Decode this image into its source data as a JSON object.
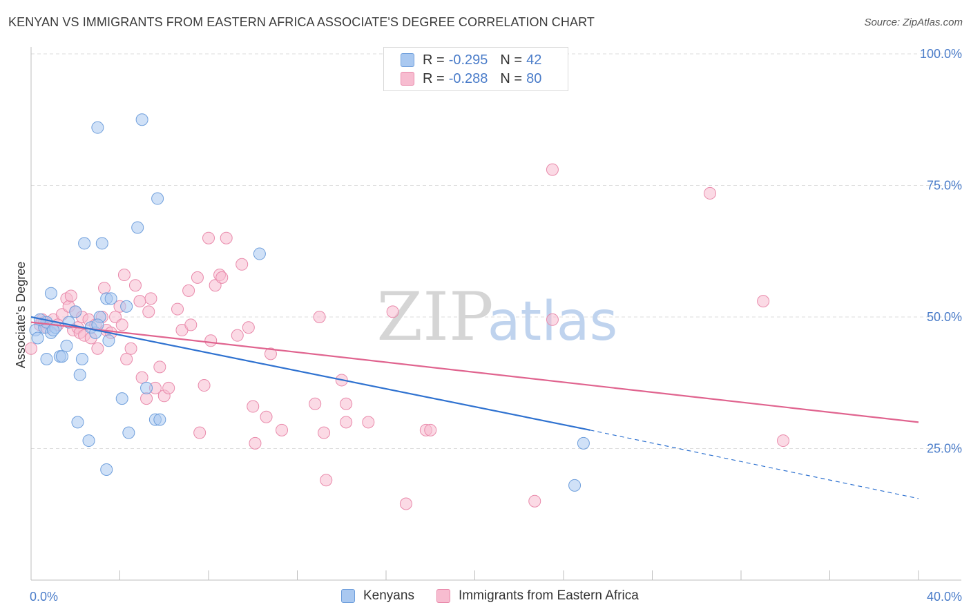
{
  "title": "KENYAN VS IMMIGRANTS FROM EASTERN AFRICA ASSOCIATE'S DEGREE CORRELATION CHART",
  "source": "Source: ZipAtlas.com",
  "watermark": {
    "zip": "ZIP",
    "atlas": "atlas"
  },
  "legend": {
    "kenyans": {
      "r_label": "R =",
      "r_value": "-0.295",
      "n_label": "N =",
      "n_value": "42"
    },
    "eastern_africa": {
      "r_label": "R =",
      "r_value": "-0.288",
      "n_label": "N =",
      "n_value": "80"
    }
  },
  "bottom_legend": {
    "kenyans": "Kenyans",
    "eastern_africa": "Immigrants from Eastern Africa"
  },
  "colors": {
    "kenyans_fill": "#a9c8f0",
    "kenyans_stroke": "#6f9fdc",
    "kenyans_line": "#2f72d0",
    "ea_fill": "#f7bcd0",
    "ea_stroke": "#e98aab",
    "ea_line": "#e0648f",
    "tick_text": "#4a7cc9",
    "grid": "#dddddd"
  },
  "chart_data": {
    "type": "scatter",
    "title": "KENYAN VS IMMIGRANTS FROM EASTERN AFRICA ASSOCIATE'S DEGREE CORRELATION CHART",
    "xlabel": "",
    "ylabel": "Associate's Degree",
    "xlim": [
      0,
      40
    ],
    "ylim": [
      0,
      105
    ],
    "x_tick_labels": [
      "0.0%",
      "40.0%"
    ],
    "y_ticks": [
      25,
      50,
      75,
      100
    ],
    "y_tick_labels": [
      "25.0%",
      "50.0%",
      "75.0%",
      "100.0%"
    ],
    "grid": true,
    "legend_position": "top-center",
    "series": [
      {
        "name": "Kenyans",
        "r": -0.295,
        "n": 42,
        "trend": {
          "x": [
            0,
            25.2
          ],
          "y": [
            50.0,
            28.5
          ],
          "dashed_to": [
            40,
            15.5
          ]
        },
        "points": [
          [
            0.2,
            47.5
          ],
          [
            0.3,
            46.0
          ],
          [
            0.6,
            48.0
          ],
          [
            0.7,
            49.0
          ],
          [
            0.7,
            42.0
          ],
          [
            0.9,
            47.0
          ],
          [
            0.9,
            54.5
          ],
          [
            1.1,
            48.0
          ],
          [
            1.3,
            42.5
          ],
          [
            1.4,
            42.5
          ],
          [
            1.6,
            44.5
          ],
          [
            1.7,
            49.0
          ],
          [
            2.0,
            51.0
          ],
          [
            2.1,
            30.0
          ],
          [
            2.2,
            39.0
          ],
          [
            2.3,
            42.0
          ],
          [
            2.4,
            64.0
          ],
          [
            2.6,
            26.5
          ],
          [
            2.7,
            48.0
          ],
          [
            2.9,
            47.0
          ],
          [
            3.0,
            86.0
          ],
          [
            3.1,
            50.0
          ],
          [
            3.2,
            64.0
          ],
          [
            3.4,
            53.5
          ],
          [
            3.4,
            21.0
          ],
          [
            3.5,
            45.5
          ],
          [
            3.6,
            53.5
          ],
          [
            4.1,
            34.5
          ],
          [
            4.3,
            52.0
          ],
          [
            4.4,
            28.0
          ],
          [
            4.8,
            67.0
          ],
          [
            5.0,
            87.5
          ],
          [
            5.2,
            36.5
          ],
          [
            5.6,
            30.5
          ],
          [
            5.7,
            72.5
          ],
          [
            5.8,
            30.5
          ],
          [
            10.3,
            62.0
          ],
          [
            24.9,
            26.0
          ],
          [
            24.5,
            18.0
          ],
          [
            0.4,
            49.5
          ],
          [
            1.0,
            47.5
          ],
          [
            3.0,
            48.5
          ]
        ]
      },
      {
        "name": "Immigrants from Eastern Africa",
        "r": -0.288,
        "n": 80,
        "trend": {
          "x": [
            0,
            40
          ],
          "y": [
            49.0,
            30.0
          ]
        },
        "points": [
          [
            0.0,
            44.0
          ],
          [
            0.4,
            48.5
          ],
          [
            0.5,
            49.5
          ],
          [
            0.6,
            49.0
          ],
          [
            0.7,
            48.0
          ],
          [
            1.0,
            49.5
          ],
          [
            1.2,
            48.5
          ],
          [
            1.4,
            50.5
          ],
          [
            1.6,
            53.5
          ],
          [
            1.7,
            52.0
          ],
          [
            1.8,
            54.0
          ],
          [
            1.9,
            47.5
          ],
          [
            2.0,
            51.0
          ],
          [
            2.1,
            48.0
          ],
          [
            2.2,
            47.0
          ],
          [
            2.3,
            50.0
          ],
          [
            2.4,
            46.5
          ],
          [
            2.6,
            49.5
          ],
          [
            2.7,
            46.0
          ],
          [
            2.9,
            48.5
          ],
          [
            3.0,
            44.0
          ],
          [
            3.2,
            50.0
          ],
          [
            3.3,
            55.5
          ],
          [
            3.4,
            47.5
          ],
          [
            3.6,
            47.0
          ],
          [
            3.8,
            50.0
          ],
          [
            4.0,
            52.0
          ],
          [
            4.1,
            48.5
          ],
          [
            4.2,
            58.0
          ],
          [
            4.3,
            42.0
          ],
          [
            4.5,
            44.0
          ],
          [
            4.7,
            56.0
          ],
          [
            4.9,
            53.0
          ],
          [
            5.0,
            38.5
          ],
          [
            5.2,
            34.5
          ],
          [
            5.3,
            51.0
          ],
          [
            5.4,
            53.5
          ],
          [
            5.6,
            36.5
          ],
          [
            5.8,
            40.5
          ],
          [
            6.0,
            35.0
          ],
          [
            6.2,
            36.5
          ],
          [
            6.6,
            51.5
          ],
          [
            6.8,
            47.5
          ],
          [
            7.1,
            55.0
          ],
          [
            7.2,
            48.5
          ],
          [
            7.5,
            57.5
          ],
          [
            7.6,
            28.0
          ],
          [
            7.8,
            37.0
          ],
          [
            8.0,
            65.0
          ],
          [
            8.1,
            45.5
          ],
          [
            8.3,
            56.0
          ],
          [
            8.5,
            58.0
          ],
          [
            8.6,
            57.5
          ],
          [
            8.8,
            65.0
          ],
          [
            9.3,
            46.5
          ],
          [
            9.5,
            60.0
          ],
          [
            9.8,
            48.0
          ],
          [
            10.0,
            33.0
          ],
          [
            10.1,
            26.0
          ],
          [
            10.6,
            31.0
          ],
          [
            10.8,
            43.0
          ],
          [
            11.3,
            28.5
          ],
          [
            12.8,
            33.5
          ],
          [
            13.0,
            50.0
          ],
          [
            13.2,
            28.0
          ],
          [
            13.3,
            19.0
          ],
          [
            14.0,
            38.0
          ],
          [
            14.2,
            33.5
          ],
          [
            14.2,
            30.0
          ],
          [
            15.2,
            30.0
          ],
          [
            16.3,
            51.0
          ],
          [
            16.9,
            14.5
          ],
          [
            17.8,
            28.5
          ],
          [
            18.0,
            28.5
          ],
          [
            22.7,
            15.0
          ],
          [
            23.5,
            78.0
          ],
          [
            23.5,
            49.5
          ],
          [
            30.6,
            73.5
          ],
          [
            33.0,
            53.0
          ],
          [
            33.9,
            26.5
          ]
        ]
      }
    ]
  }
}
